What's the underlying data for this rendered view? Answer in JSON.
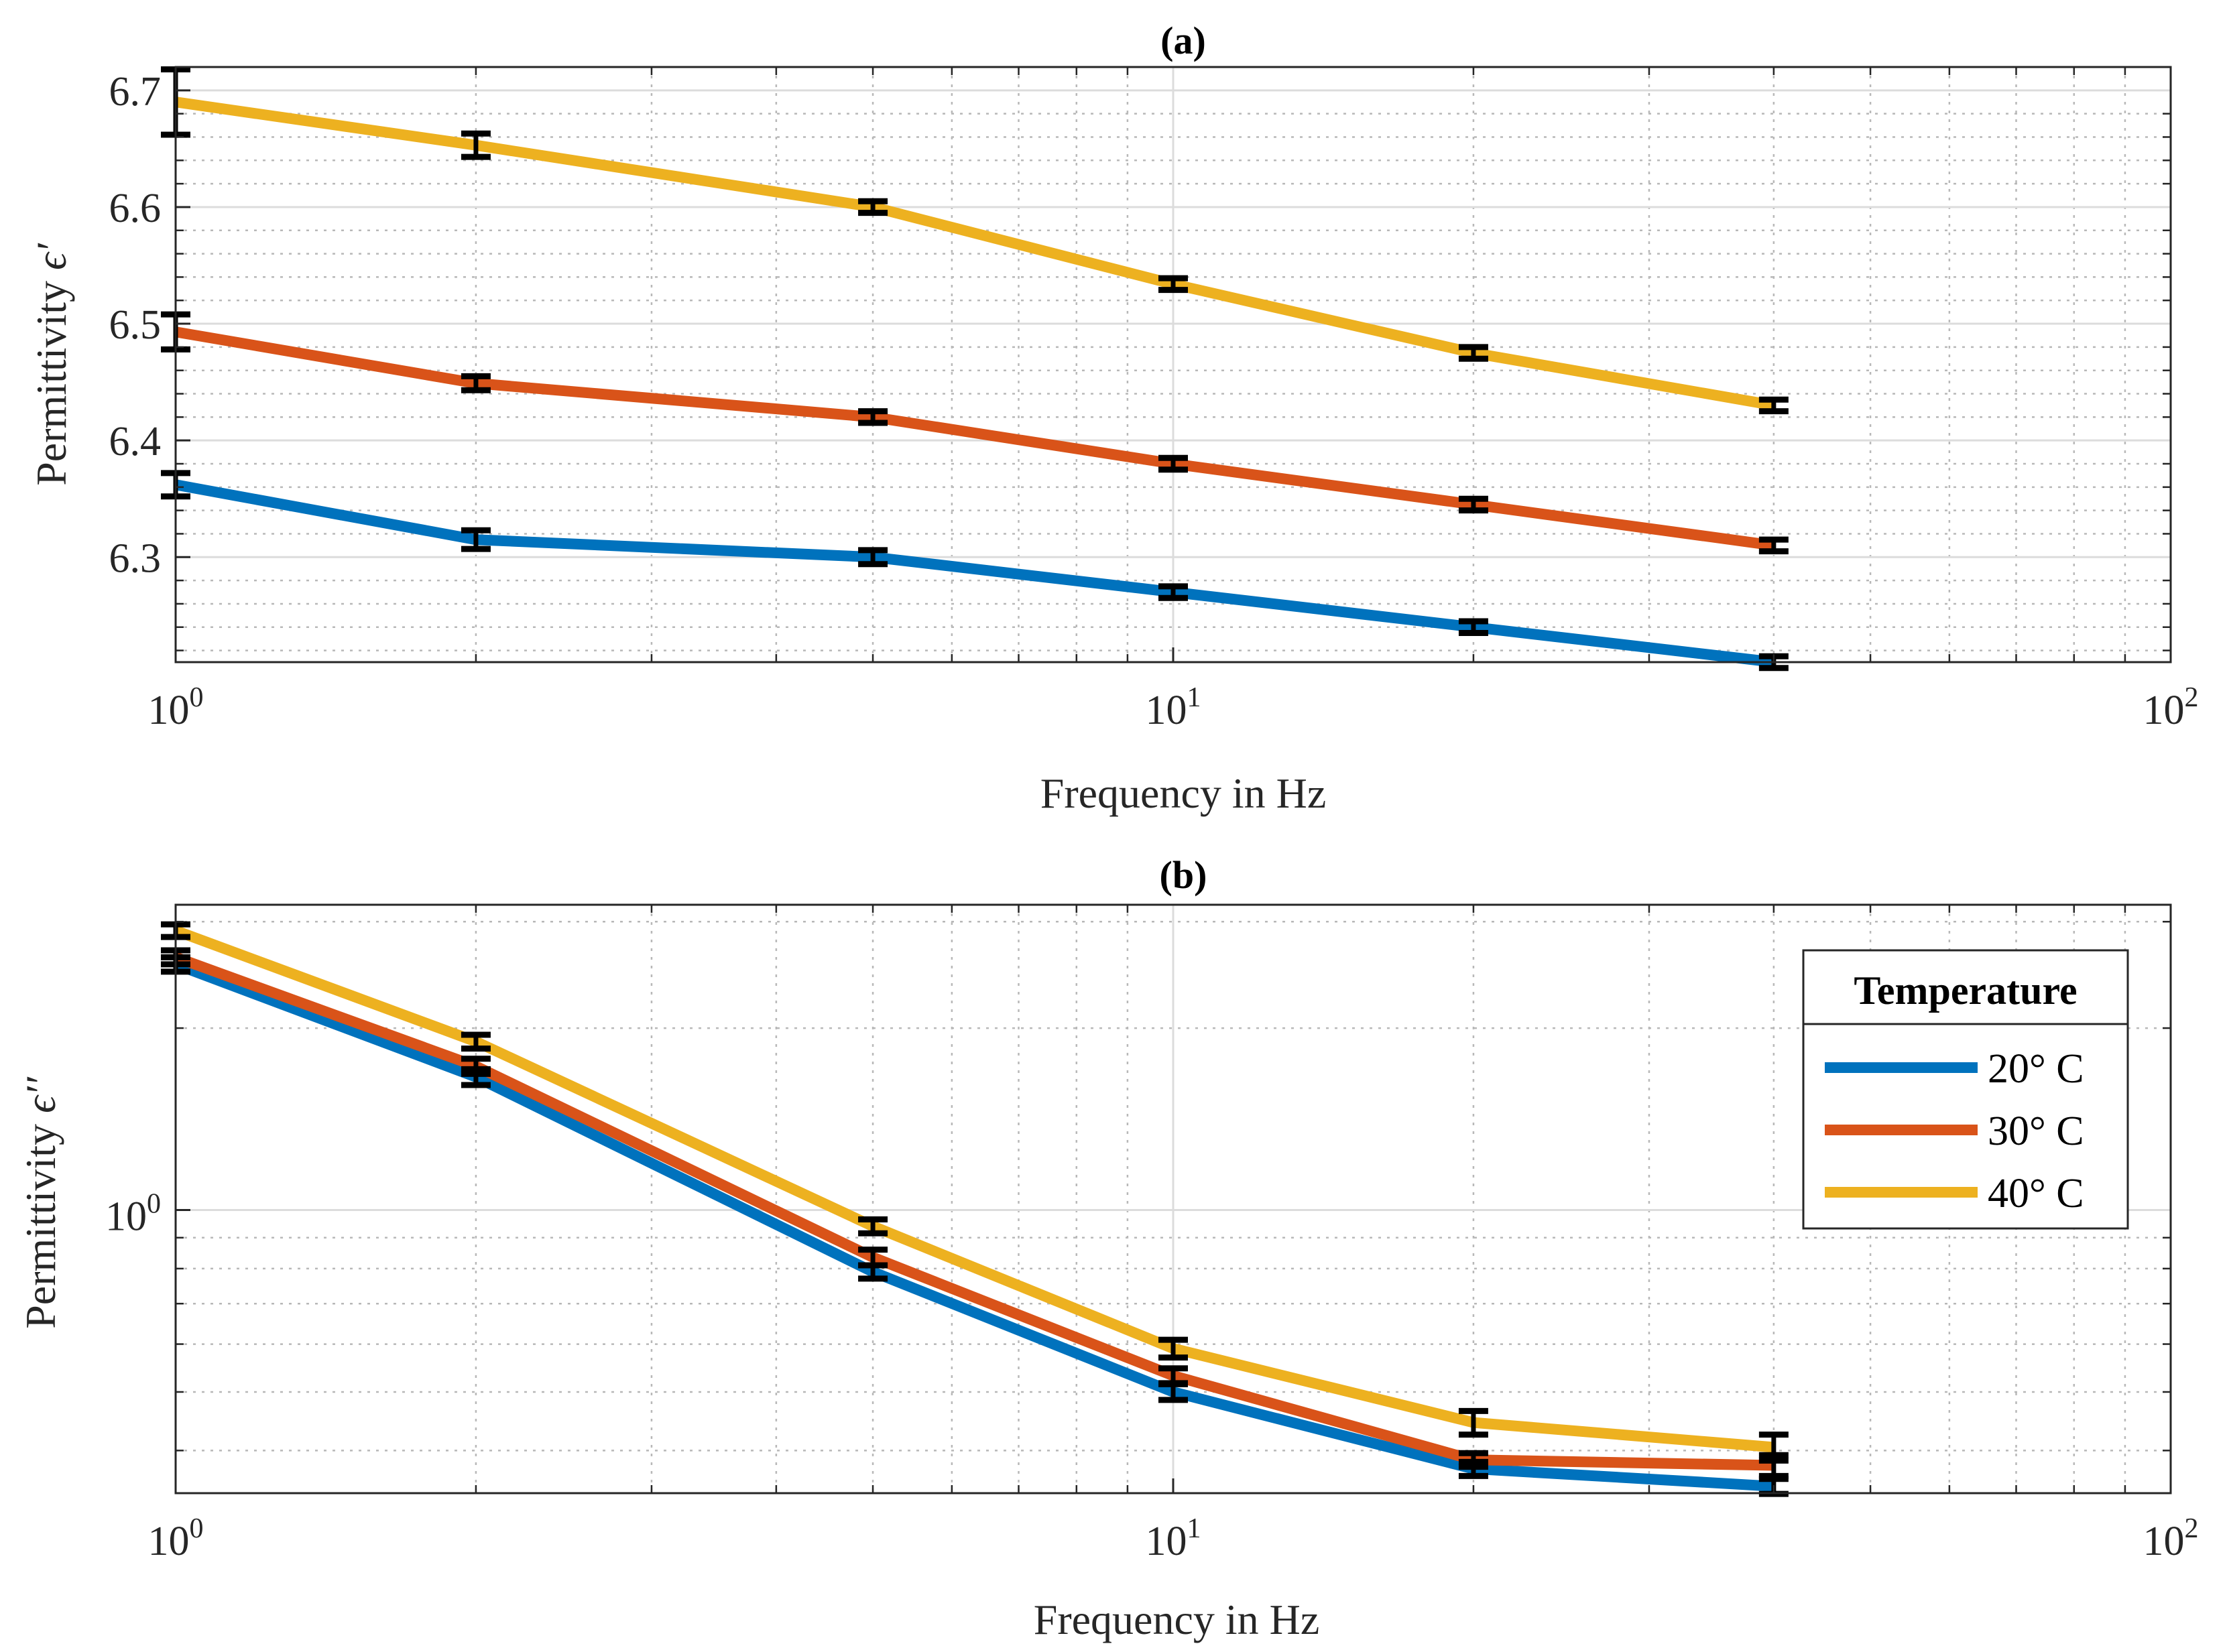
{
  "chart_data": [
    {
      "id": "a",
      "type": "line",
      "title": "(a)",
      "xlabel": "Frequency in Hz",
      "ylabel_text": "Permittivity ",
      "ylabel_symbol": "ϵ′",
      "xscale": "log",
      "yscale": "linear",
      "xlim": [
        1,
        100
      ],
      "ylim": [
        6.21,
        6.72
      ],
      "grid": true,
      "minor_grid": true,
      "x": [
        1,
        2,
        5,
        10,
        20,
        40
      ],
      "x_ticks": [
        {
          "base": "10",
          "exp": "0",
          "value": 1
        },
        {
          "base": "10",
          "exp": "1",
          "value": 10
        },
        {
          "base": "10",
          "exp": "2",
          "value": 100
        }
      ],
      "y_ticks": [
        6.3,
        6.4,
        6.5,
        6.6,
        6.7
      ],
      "y_tick_labels": [
        "6.3",
        "6.4",
        "6.5",
        "6.6",
        "6.7"
      ],
      "series": [
        {
          "name": "20° C",
          "color": "#0072BD",
          "values": [
            6.362,
            6.315,
            6.3,
            6.27,
            6.24,
            6.21
          ],
          "errors": [
            0.01,
            0.008,
            0.006,
            0.005,
            0.005,
            0.005
          ]
        },
        {
          "name": "30° C",
          "color": "#D95319",
          "values": [
            6.493,
            6.449,
            6.42,
            6.38,
            6.345,
            6.31
          ],
          "errors": [
            0.015,
            0.006,
            0.005,
            0.005,
            0.005,
            0.005
          ]
        },
        {
          "name": "40° C",
          "color": "#EDB120",
          "values": [
            6.69,
            6.653,
            6.6,
            6.534,
            6.475,
            6.43
          ],
          "errors": [
            0.028,
            0.01,
            0.005,
            0.005,
            0.005,
            0.005
          ]
        }
      ]
    },
    {
      "id": "b",
      "type": "line",
      "title": "(b)",
      "xlabel": "Frequency in Hz",
      "ylabel_text": "Permittivity ",
      "ylabel_symbol": "ϵ′′",
      "xscale": "log",
      "yscale": "log",
      "xlim": [
        1,
        100
      ],
      "ylim": [
        0.34,
        3.2
      ],
      "grid": true,
      "minor_grid": true,
      "x": [
        1,
        2,
        5,
        10,
        20,
        40
      ],
      "x_ticks": [
        {
          "base": "10",
          "exp": "0",
          "value": 1
        },
        {
          "base": "10",
          "exp": "1",
          "value": 10
        },
        {
          "base": "10",
          "exp": "2",
          "value": 100
        }
      ],
      "y_ticks": [
        {
          "base": "10",
          "exp": "0",
          "value": 1
        }
      ],
      "series": [
        {
          "name": "20° C",
          "color": "#0072BD",
          "values": [
            2.55,
            1.66,
            0.79,
            0.5,
            0.373,
            0.349
          ],
          "errors": [
            0.07,
            0.05,
            0.02,
            0.015,
            0.01,
            0.01
          ]
        },
        {
          "name": "30° C",
          "color": "#D95319",
          "values": [
            2.62,
            1.73,
            0.835,
            0.532,
            0.386,
            0.378
          ],
          "errors": [
            0.07,
            0.05,
            0.025,
            0.015,
            0.01,
            0.015
          ]
        },
        {
          "name": "40° C",
          "color": "#EDB120",
          "values": [
            2.9,
            1.9,
            0.94,
            0.59,
            0.445,
            0.405
          ],
          "errors": [
            0.07,
            0.05,
            0.025,
            0.02,
            0.02,
            0.02
          ]
        }
      ],
      "legend": {
        "title": "Temperature",
        "placement": "top-right"
      }
    }
  ]
}
